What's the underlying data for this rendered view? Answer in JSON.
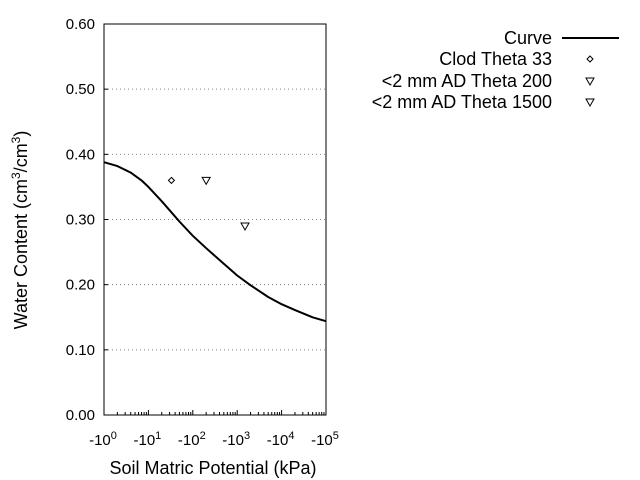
{
  "chart_data": {
    "type": "scatter",
    "xlabel": "Soil Matric Potential (kPa)",
    "ylabel": "Water Content (cm3/cm3)",
    "ylabel_parts": {
      "pre": "Water Content (cm",
      "sup1": "3",
      "mid": "/cm",
      "sup2": "3",
      "post": ")"
    },
    "x_scale": "log",
    "xlim": [
      1,
      100000
    ],
    "ylim": [
      0,
      0.6
    ],
    "x_ticks": [
      {
        "value": 1,
        "base": "-10",
        "exp": "0"
      },
      {
        "value": 10,
        "base": "-10",
        "exp": "1"
      },
      {
        "value": 100,
        "base": "-10",
        "exp": "2"
      },
      {
        "value": 1000,
        "base": "-10",
        "exp": "3"
      },
      {
        "value": 10000,
        "base": "-10",
        "exp": "4"
      },
      {
        "value": 100000,
        "base": "-10",
        "exp": "5"
      }
    ],
    "y_ticks": [
      {
        "value": 0,
        "label": "0.00"
      },
      {
        "value": 0.1,
        "label": "0.10"
      },
      {
        "value": 0.2,
        "label": "0.20"
      },
      {
        "value": 0.3,
        "label": "0.30"
      },
      {
        "value": 0.4,
        "label": "0.40"
      },
      {
        "value": 0.5,
        "label": "0.50"
      },
      {
        "value": 0.6,
        "label": "0.60"
      }
    ],
    "grid": "horizontal dotted",
    "legend_position": "right",
    "series": [
      {
        "name": "Curve",
        "kind": "line",
        "color": "#000000",
        "x": [
          1,
          2,
          4,
          7,
          10,
          20,
          33,
          50,
          100,
          200,
          500,
          1000,
          2000,
          5000,
          10000,
          20000,
          50000,
          100000
        ],
        "y": [
          0.388,
          0.382,
          0.372,
          0.36,
          0.35,
          0.328,
          0.311,
          0.297,
          0.275,
          0.256,
          0.232,
          0.214,
          0.199,
          0.181,
          0.17,
          0.161,
          0.15,
          0.144
        ]
      },
      {
        "name": "Clod Theta 33",
        "kind": "marker",
        "marker": "diamond",
        "x": [
          33
        ],
        "y": [
          0.36
        ]
      },
      {
        "name": "<2 mm AD Theta 200",
        "kind": "marker",
        "marker": "triangle-down",
        "x": [
          200
        ],
        "y": [
          0.36
        ]
      },
      {
        "name": "<2 mm AD Theta 1500",
        "kind": "marker",
        "marker": "triangle-down",
        "x": [
          1500
        ],
        "y": [
          0.29
        ]
      }
    ]
  }
}
